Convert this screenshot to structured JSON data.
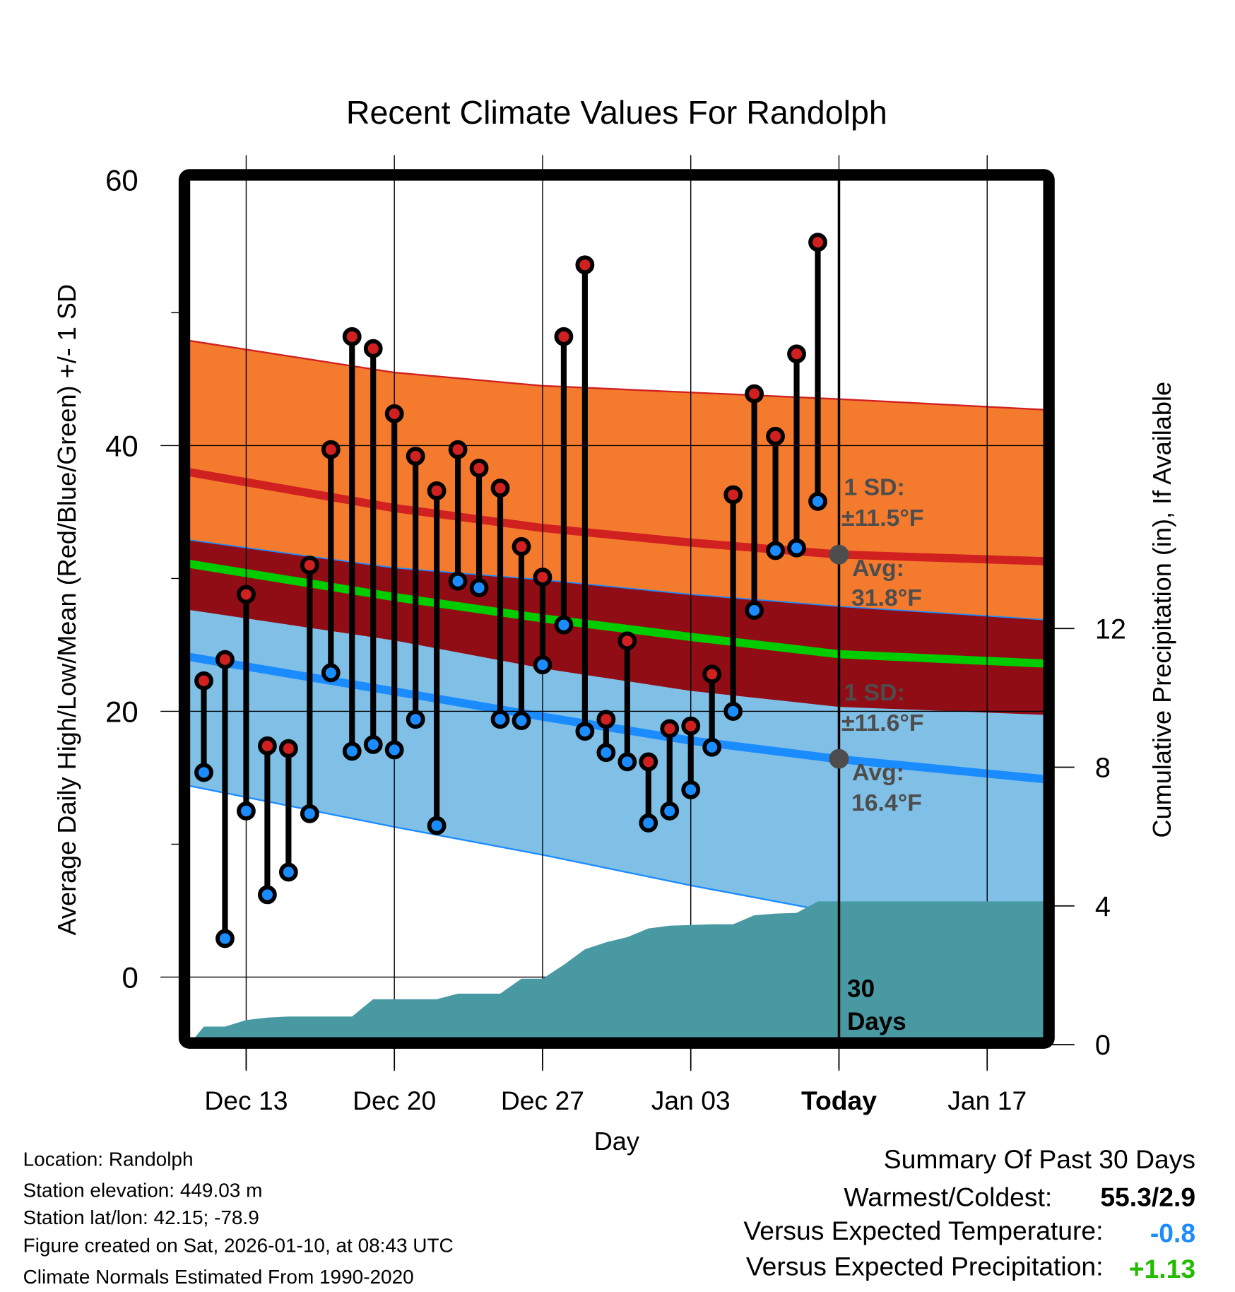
{
  "chart_data": {
    "type": "line",
    "title": "Recent Climate Values For Randolph",
    "xlabel": "Day",
    "ylabel": "Average Daily High/Low/Mean (Red/Blue/Green) +/- 1 SD",
    "y2label": "Cumulative Precipitation (in), If Available",
    "ylim": [
      -5,
      60
    ],
    "y2lim": [
      0,
      25
    ],
    "yticks": [
      "0",
      "20",
      "40",
      "60"
    ],
    "y2ticks": [
      "0",
      "4",
      "8",
      "12"
    ],
    "xticks": [
      "Dec 13",
      "Dec 20",
      "Dec 27",
      "Jan 03",
      "Today",
      "Jan 17"
    ],
    "grid": true,
    "days": [
      "Dec 11",
      "Dec 12",
      "Dec 13",
      "Dec 14",
      "Dec 15",
      "Dec 16",
      "Dec 17",
      "Dec 18",
      "Dec 19",
      "Dec 20",
      "Dec 21",
      "Dec 22",
      "Dec 23",
      "Dec 24",
      "Dec 25",
      "Dec 26",
      "Dec 27",
      "Dec 28",
      "Dec 29",
      "Dec 30",
      "Dec 31",
      "Jan 01",
      "Jan 02",
      "Jan 03",
      "Jan 04",
      "Jan 05",
      "Jan 06",
      "Jan 07",
      "Jan 08",
      "Jan 09"
    ],
    "highs": [
      22.3,
      23.9,
      28.8,
      17.4,
      17.2,
      31.0,
      39.7,
      48.2,
      47.3,
      42.4,
      39.2,
      36.6,
      39.7,
      38.3,
      36.8,
      32.4,
      30.1,
      48.2,
      53.6,
      19.4,
      25.3,
      16.2,
      18.7,
      18.9,
      22.8,
      36.3,
      43.9,
      40.7,
      46.9,
      55.3
    ],
    "lows": [
      15.4,
      2.9,
      12.5,
      6.2,
      7.9,
      12.3,
      22.9,
      17.0,
      17.5,
      17.1,
      19.4,
      11.4,
      29.8,
      29.3,
      19.4,
      19.3,
      23.5,
      26.5,
      18.5,
      16.9,
      16.2,
      11.6,
      12.5,
      14.1,
      17.3,
      20.0,
      27.6,
      32.1,
      32.3,
      35.8
    ],
    "precip_cumulative": [
      0.52,
      0.52,
      0.71,
      0.78,
      0.81,
      0.81,
      0.81,
      0.81,
      1.31,
      1.31,
      1.31,
      1.31,
      1.47,
      1.47,
      1.47,
      1.9,
      1.9,
      2.3,
      2.75,
      2.95,
      3.1,
      3.35,
      3.43,
      3.45,
      3.47,
      3.47,
      3.73,
      3.78,
      3.8,
      4.13
    ],
    "normals": {
      "days_from_dec13": [
        -2.7,
        7,
        14,
        21,
        28,
        37.7
      ],
      "high_avg": [
        38.0,
        35.3,
        33.8,
        32.7,
        31.8,
        31.3
      ],
      "high_plus_sd": [
        47.9,
        45.5,
        44.5,
        44.0,
        43.5,
        42.7
      ],
      "high_minus_sd": [
        32.9,
        30.8,
        29.9,
        28.8,
        27.9,
        26.9
      ],
      "mean": [
        31.1,
        28.6,
        27.0,
        25.6,
        24.3,
        23.6
      ],
      "low_plus_sd": [
        27.7,
        25.4,
        23.3,
        21.6,
        20.4,
        19.8
      ],
      "low_avg": [
        24.1,
        21.5,
        19.6,
        17.8,
        16.4,
        14.9
      ],
      "low_minus_sd": [
        14.4,
        11.3,
        9.2,
        6.9,
        4.8,
        2.6
      ]
    },
    "annotations": {
      "high_sd_1": "1 SD:",
      "high_sd_2": "±11.5°F",
      "high_avg_1": "Avg:",
      "high_avg_2": "31.8°F",
      "low_sd_1": "1 SD:",
      "low_sd_2": "±11.6°F",
      "low_avg_1": "Avg:",
      "low_avg_2": "16.4°F",
      "window_1": "30",
      "window_2": "Days"
    },
    "colors": {
      "high_band": "#f47b2e",
      "mid_band": "#910d16",
      "low_band": "#80c0e6",
      "high_line": "#d02020",
      "mean_line": "#00cc00",
      "low_line": "#1a8cff",
      "precip": "#4899a2",
      "high_dot": "#d02020",
      "low_dot": "#1a8cff"
    }
  },
  "footer": {
    "location": "Location: Randolph",
    "elevation": "Station elevation: 449.03 m",
    "latlon": "Station lat/lon: 42.15; -78.9",
    "created": "Figure created on Sat, 2026-01-10, at 08:43 UTC",
    "normals": "Climate Normals Estimated From 1990-2020"
  },
  "summary": {
    "title": "Summary Of Past 30 Days",
    "warm_cold_label": "Warmest/Coldest:",
    "warm_cold_value": "55.3/2.9",
    "temp_label": "Versus Expected Temperature:",
    "temp_value": "-0.8",
    "precip_label": "Versus Expected Precipitation:",
    "precip_value": "+1.13",
    "temp_color": "#1a8cff",
    "precip_color": "#22bb00"
  }
}
